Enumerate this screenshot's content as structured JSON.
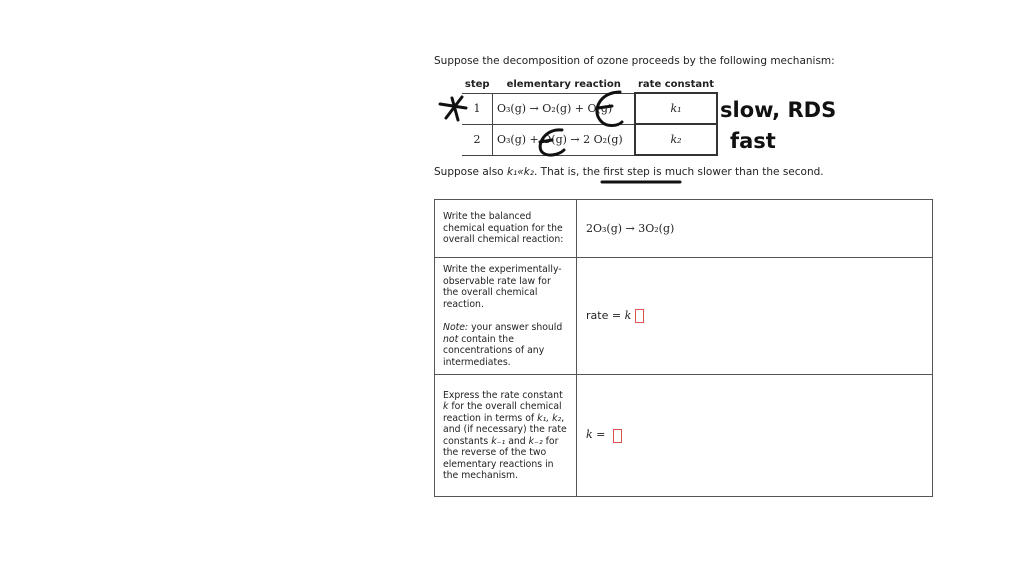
{
  "intro": "Suppose the decomposition of ozone proceeds by the following mechanism:",
  "mechanism": {
    "headers": [
      "step",
      "elementary reaction",
      "rate constant"
    ],
    "rows": [
      {
        "step": "1",
        "reaction": "O₃(g) → O₂(g) + O(g)",
        "k": "k₁"
      },
      {
        "step": "2",
        "reaction": "O₃(g) + O(g) → 2 O₂(g)",
        "k": "k₂"
      }
    ]
  },
  "also": {
    "prefix": "Suppose also ",
    "relation": "k₁«k₂",
    "suffix": ". That is, the first step is much slower than the second."
  },
  "questions": [
    {
      "prompt": "Write the balanced chemical equation for the overall chemical reaction:",
      "answer": "2O₃(g) → 3O₂(g)"
    },
    {
      "prompt": "Write the experimentally-observable rate law for the overall chemical reaction.",
      "note_label": "Note:",
      "note_pre": " your answer should ",
      "note_em": "not",
      "note_post": " contain the concentrations of any intermediates.",
      "answer_prefix": "rate = ",
      "answer_k": "k"
    },
    {
      "prompt_pre": "Express the rate constant ",
      "prompt_k": "k",
      "prompt_mid": " for the overall chemical reaction in terms of ",
      "prompt_k1": "k₁, k₂",
      "prompt_mid2": ", and (if necessary) the rate constants ",
      "prompt_km1": "k₋₁",
      "prompt_and": " and ",
      "prompt_km2": "k₋₂",
      "prompt_post": " for the reverse of the two elementary reactions in the mechanism.",
      "answer_k": "k",
      "answer_eq": " = "
    }
  ],
  "annotations": {
    "step1": "slow, RDS",
    "step2": "fast",
    "ink_color": "#111111"
  },
  "colors": {
    "answer_box": "#d9534f"
  }
}
